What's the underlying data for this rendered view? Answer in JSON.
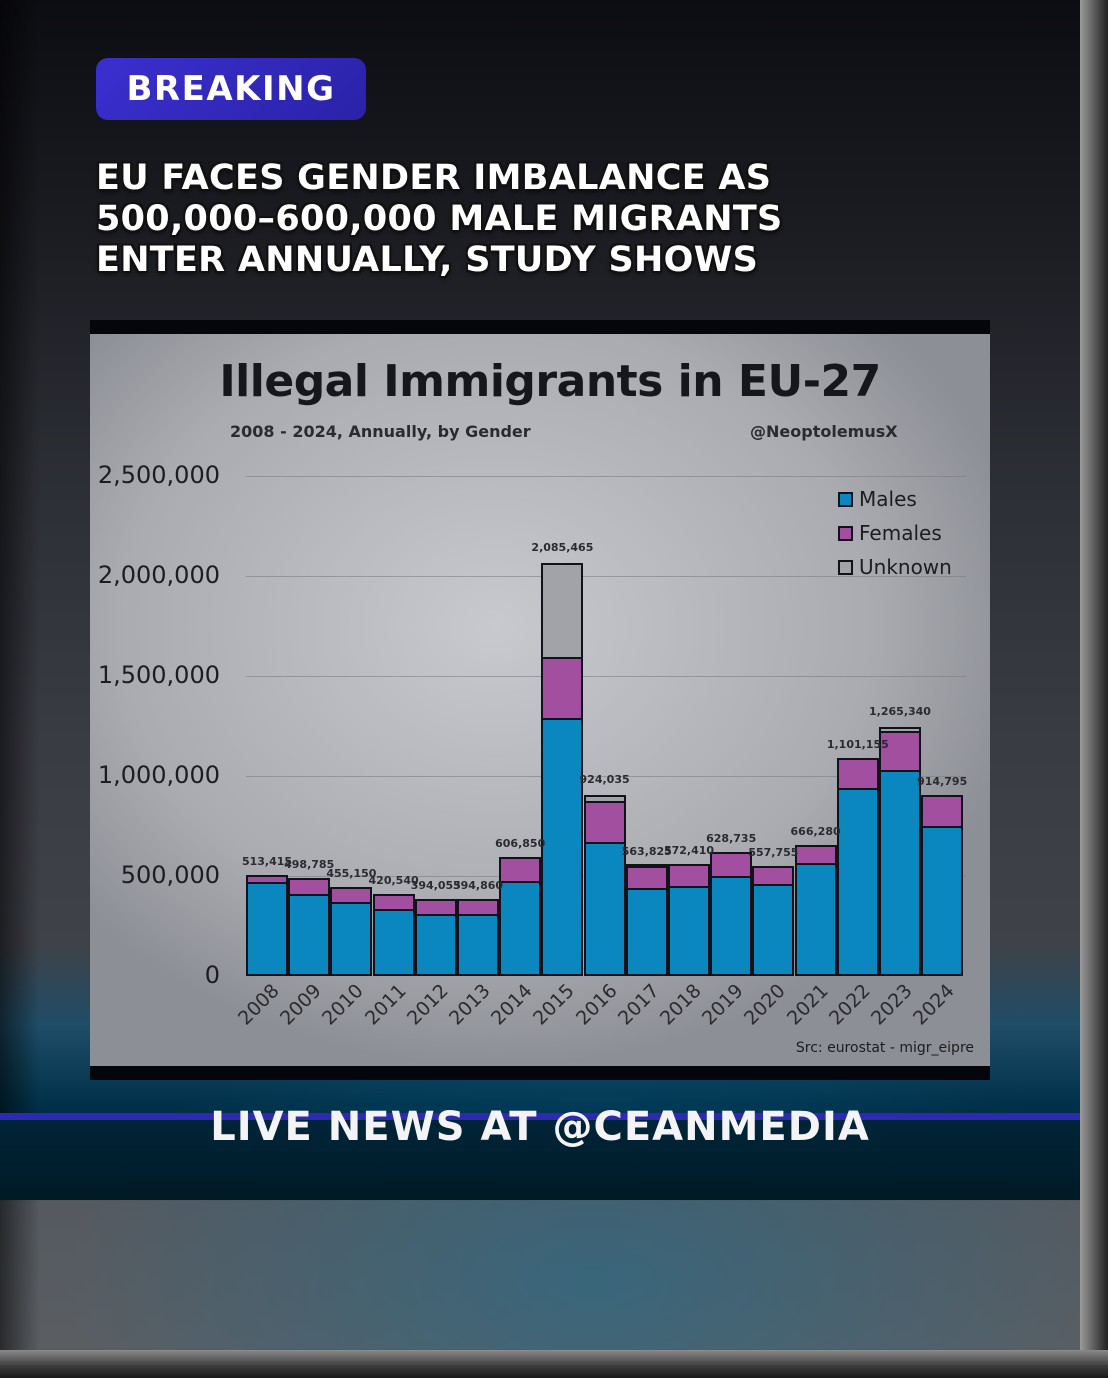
{
  "badge": {
    "label": "BREAKING",
    "color": "#3b2fd0"
  },
  "headline": {
    "lines": [
      "EU FACES GENDER IMBALANCE AS",
      "500,000–600,000 MALE MIGRANTS",
      "ENTER ANNUALLY, STUDY SHOWS"
    ]
  },
  "ticker": {
    "label": "LIVE NEWS AT @CEANMEDIA",
    "line_color": "#2e28b5"
  },
  "chart_data": {
    "type": "bar",
    "stacked": true,
    "title": "Illegal Immigrants in EU-27",
    "subtitle": "2008 - 2024, Annually, by Gender",
    "credit": "@NeoptolemusX",
    "source": "Src: eurostat - migr_eipre",
    "xlabel": "",
    "ylabel": "",
    "ylim": [
      0,
      2500000
    ],
    "yticks": [
      "2,500,000",
      "2,000,000",
      "1,500,000",
      "1,000,000",
      "500,000",
      "0"
    ],
    "grid": true,
    "legend_position": "top-right",
    "categories": [
      "2008",
      "2009",
      "2010",
      "2011",
      "2012",
      "2013",
      "2014",
      "2015",
      "2016",
      "2017",
      "2018",
      "2019",
      "2020",
      "2021",
      "2022",
      "2023",
      "2024"
    ],
    "totals": [
      513415,
      498785,
      455150,
      420540,
      394055,
      394860,
      606850,
      2085465,
      924035,
      563825,
      572410,
      628735,
      557755,
      666280,
      1101155,
      1265340,
      914795
    ],
    "total_labels": [
      "513,415",
      "498,785",
      "455,150",
      "420,540",
      "394,055",
      "394,860",
      "606,850",
      "2,085,465",
      "924,035",
      "563,825",
      "572,410",
      "628,735",
      "557,755",
      "666,280",
      "1,101,155",
      "1,265,340",
      "914,795"
    ],
    "series": [
      {
        "name": "Males",
        "color": "#0b87bf",
        "values": [
          470000,
          410000,
          370000,
          335000,
          310000,
          310000,
          475000,
          1290000,
          670000,
          440000,
          450000,
          500000,
          460000,
          565000,
          940000,
          1030000,
          750000
        ]
      },
      {
        "name": "Females",
        "color": "#a24f9f",
        "values": [
          43415,
          88785,
          85150,
          85540,
          84055,
          84860,
          131850,
          315000,
          215000,
          117825,
          122410,
          128735,
          97755,
          101280,
          161155,
          205340,
          164795
        ]
      },
      {
        "name": "Unknown",
        "color": "#a2a3a8",
        "values": [
          0,
          0,
          0,
          0,
          0,
          0,
          0,
          480465,
          39035,
          6000,
          0,
          0,
          0,
          0,
          0,
          30000,
          0
        ]
      }
    ]
  }
}
